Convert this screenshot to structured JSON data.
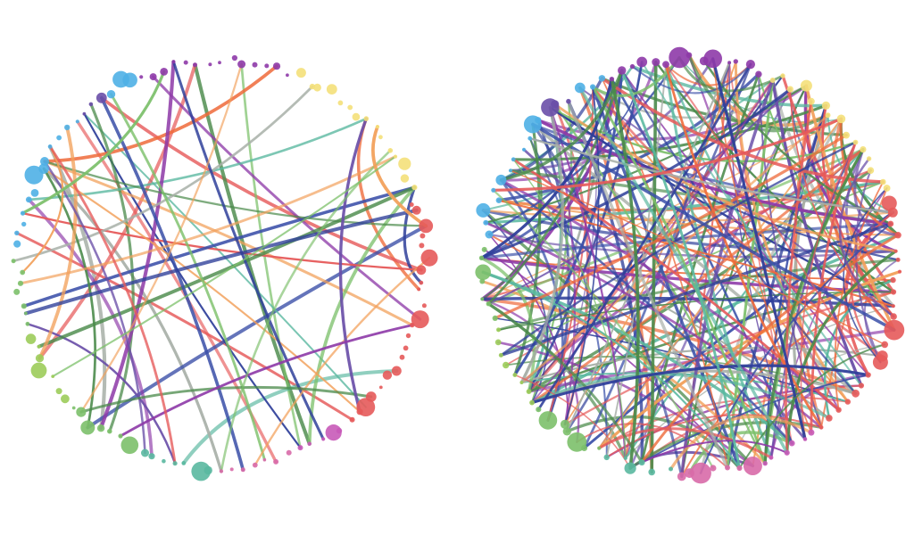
{
  "diagrams": [
    {
      "id": "sparse-network",
      "density": "sparse",
      "node_count": 110,
      "edge_count": 48,
      "seed": 11
    },
    {
      "id": "dense-network",
      "density": "dense",
      "node_count": 110,
      "edge_count": 230,
      "seed": 29
    }
  ],
  "palette": {
    "purple": "#8e3aa8",
    "indigo": "#6a4fa8",
    "blue": "#3a4fa8",
    "sky": "#4fb0e6",
    "teal": "#5ab8a0",
    "green": "#7cc06a",
    "lime": "#9ccc5a",
    "yellow": "#f4e07a",
    "orange": "#f2a05a",
    "red": "#e65a5a",
    "magenta": "#c85ab8",
    "pink": "#d86aa8",
    "gray": "#a8b0a8",
    "dark-blue": "#2f3f9a",
    "dark-green": "#4a8a4a",
    "orange-red": "#ee6a3a"
  }
}
